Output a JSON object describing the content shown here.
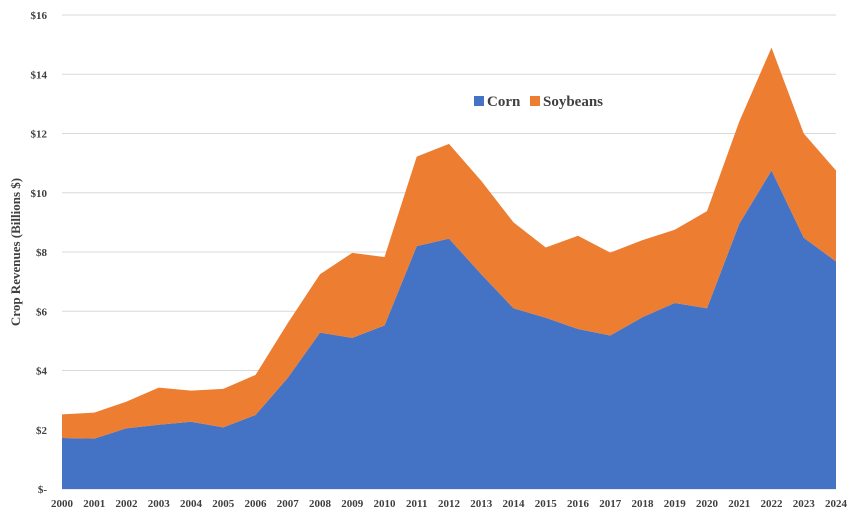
{
  "chart_data": {
    "type": "area",
    "stacked": true,
    "x": [
      "2000",
      "2001",
      "2002",
      "2003",
      "2004",
      "2005",
      "2006",
      "2007",
      "2008",
      "2009",
      "2010",
      "2011",
      "2012",
      "2013",
      "2014",
      "2015",
      "2016",
      "2017",
      "2018",
      "2019",
      "2020",
      "2021",
      "2022",
      "2023",
      "2024"
    ],
    "series": [
      {
        "name": "Corn",
        "color": "#4472c4",
        "values": [
          1.72,
          1.7,
          2.05,
          2.17,
          2.27,
          2.08,
          2.5,
          3.75,
          5.28,
          5.1,
          5.52,
          8.2,
          8.45,
          7.25,
          6.1,
          5.78,
          5.4,
          5.18,
          5.8,
          6.28,
          6.1,
          8.95,
          10.75,
          8.48,
          7.68
        ]
      },
      {
        "name": "Soybeans",
        "color": "#ed7d31",
        "values": [
          0.8,
          0.88,
          0.9,
          1.25,
          1.05,
          1.3,
          1.35,
          1.85,
          1.97,
          2.87,
          2.31,
          3.02,
          3.2,
          3.15,
          2.9,
          2.37,
          3.15,
          2.8,
          2.6,
          2.47,
          3.28,
          3.45,
          4.15,
          3.52,
          3.07
        ]
      }
    ],
    "ylabel": "Crop Revenues (Billions $)",
    "xlabel": "",
    "ylim": [
      0,
      16
    ],
    "yticks": [
      0,
      2,
      4,
      6,
      8,
      10,
      12,
      14,
      16
    ],
    "ytick_labels": [
      "$-",
      "$2",
      "$4",
      "$6",
      "$8",
      "$10",
      "$12",
      "$14",
      "$16"
    ],
    "grid": true,
    "legend_position": "top-center"
  }
}
